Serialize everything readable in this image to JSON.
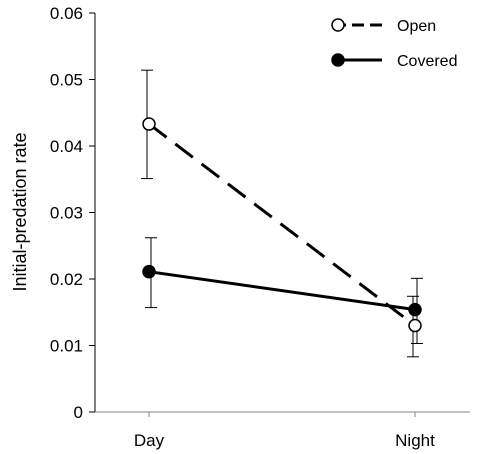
{
  "chart_data": {
    "type": "line",
    "categories": [
      "Day",
      "Night"
    ],
    "ylabel": "Initial-predation rate",
    "xlabel": "",
    "ylim": [
      0,
      0.06
    ],
    "yticks": [
      "0",
      "0.01",
      "0.02",
      "0.03",
      "0.04",
      "0.05",
      "0.06"
    ],
    "grid": false,
    "legend_position": "top-right",
    "series": [
      {
        "name": "Open",
        "line_style": "dashed",
        "marker": "open-circle",
        "values": [
          0.0433,
          0.013
        ],
        "error_low": [
          0.0351,
          0.0083
        ],
        "error_high": [
          0.0514,
          0.0174
        ]
      },
      {
        "name": "Covered",
        "line_style": "solid",
        "marker": "filled-circle",
        "values": [
          0.0211,
          0.0154
        ],
        "error_low": [
          0.0157,
          0.0103
        ],
        "error_high": [
          0.0262,
          0.0201
        ]
      }
    ],
    "colors": {
      "line": "#000000",
      "open_fill": "#ffffff",
      "covered_fill": "#000000"
    }
  }
}
